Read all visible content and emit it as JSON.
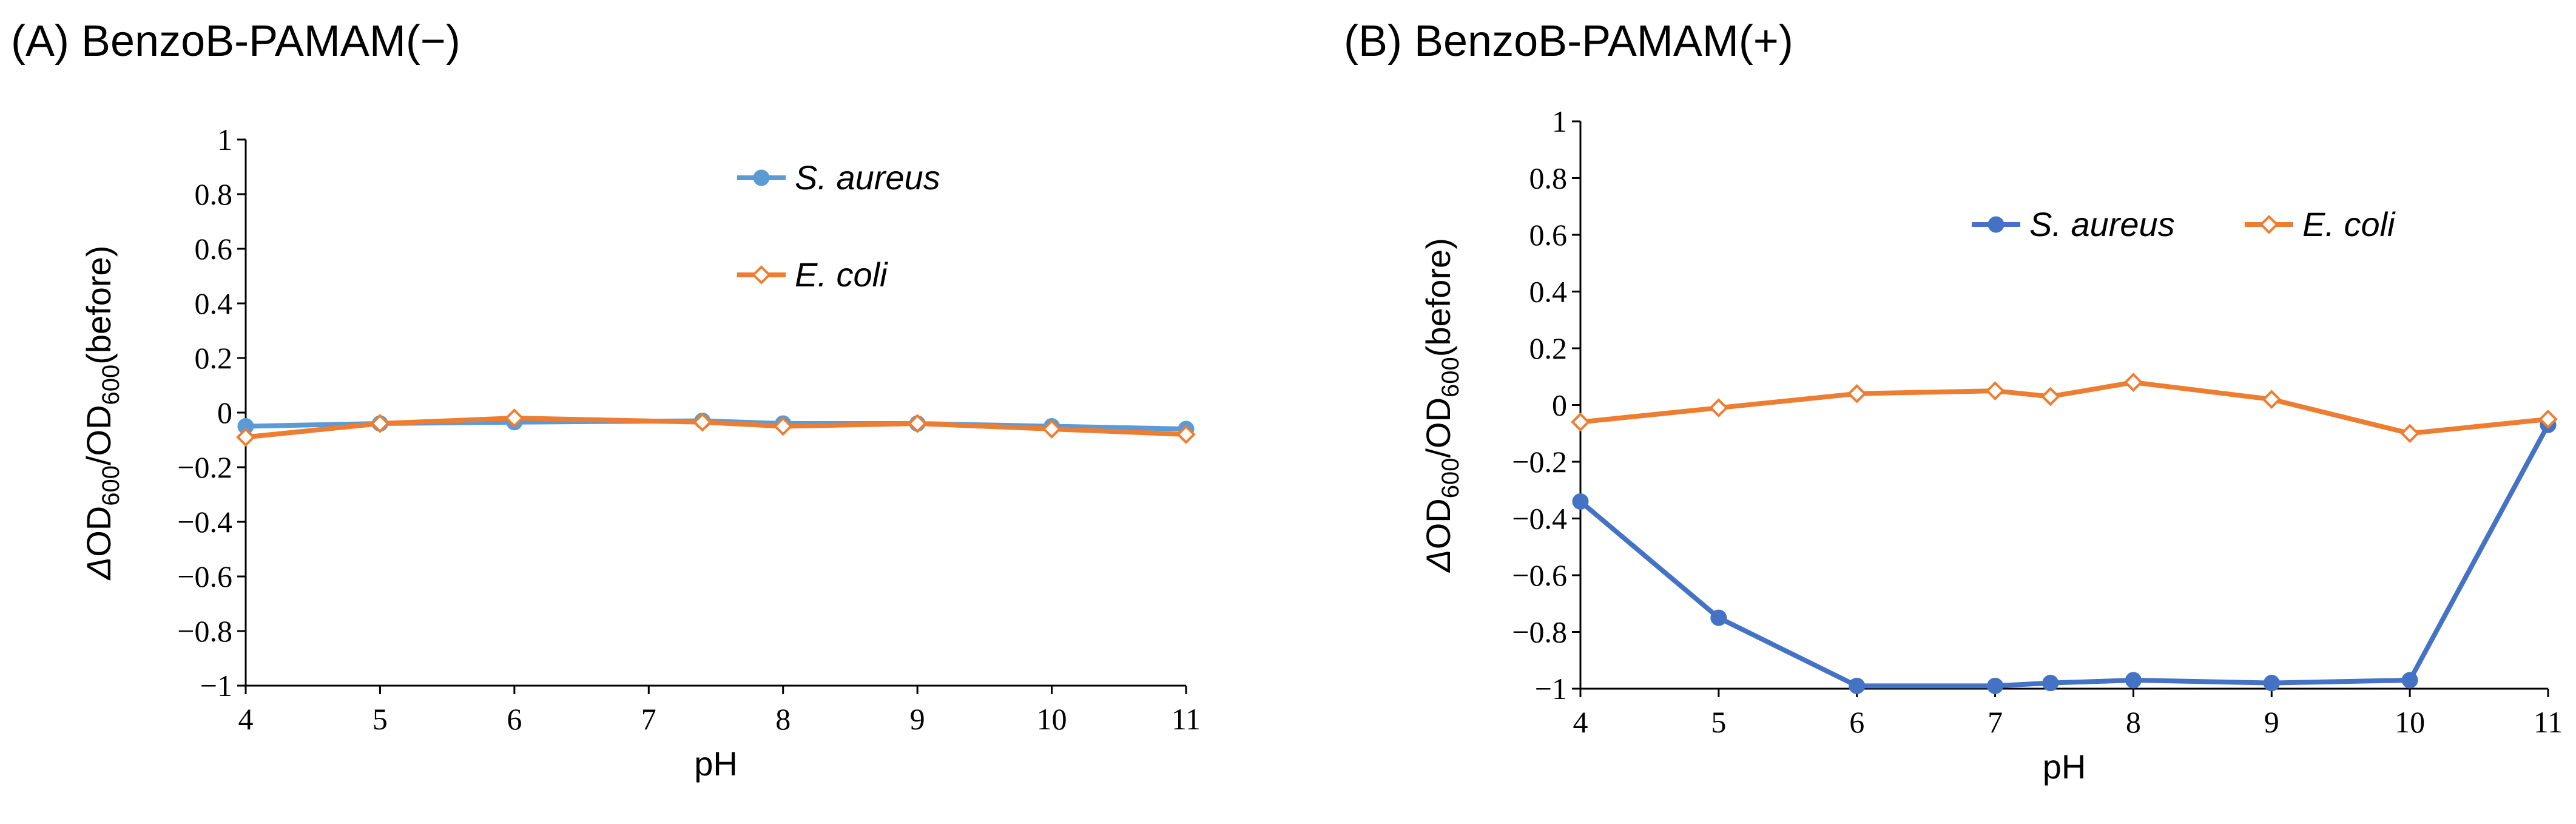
{
  "chart_data": [
    {
      "type": "line",
      "title": "(A) BenzoB-PAMAM(−)",
      "xlabel": "pH",
      "ylabel": "ΔOD600/OD600(before)",
      "ylabel_parts": {
        "delta": "Δ",
        "od": "OD",
        "sub": "600",
        "slash": "/",
        "tail": "(before)"
      },
      "xlim": [
        4,
        11
      ],
      "ylim": [
        -1,
        1
      ],
      "xticks": [
        4,
        5,
        6,
        7,
        8,
        9,
        10,
        11
      ],
      "xtick_labels": [
        "4",
        "5",
        "6",
        "7",
        "8",
        "9",
        "10",
        "11"
      ],
      "yticks": [
        1,
        0.8,
        0.6,
        0.4,
        0.2,
        0,
        -0.2,
        -0.4,
        -0.6,
        -0.8,
        -1
      ],
      "ytick_labels": [
        "1",
        "0.8",
        "0.6",
        "0.4",
        "0.2",
        "0",
        "−0.2",
        "−0.4",
        "−0.6",
        "−0.8",
        "−1"
      ],
      "legend_position": "upper-right-stacked",
      "series": [
        {
          "name": "S. aureus",
          "color": "#5B9BD5",
          "marker": "circle",
          "filled": true,
          "x": [
            4,
            5,
            6,
            7.4,
            8,
            9,
            10,
            11
          ],
          "y": [
            -0.05,
            -0.04,
            -0.035,
            -0.03,
            -0.04,
            -0.04,
            -0.05,
            -0.06
          ]
        },
        {
          "name": "E. coli",
          "color": "#ED7D31",
          "marker": "diamond",
          "filled": false,
          "x": [
            4,
            5,
            6,
            7.4,
            8,
            9,
            10,
            11
          ],
          "y": [
            -0.09,
            -0.04,
            -0.02,
            -0.035,
            -0.05,
            -0.04,
            -0.06,
            -0.08
          ]
        }
      ]
    },
    {
      "type": "line",
      "title": "(B) BenzoB-PAMAM(+)",
      "xlabel": "pH",
      "ylabel": "ΔOD600/OD600(before)",
      "ylabel_parts": {
        "delta": "Δ",
        "od": "OD",
        "sub": "600",
        "slash": "/",
        "tail": "(before)"
      },
      "xlim": [
        4,
        11
      ],
      "ylim": [
        -1,
        1
      ],
      "xticks": [
        4,
        5,
        6,
        7,
        8,
        9,
        10,
        11
      ],
      "xtick_labels": [
        "4",
        "5",
        "6",
        "7",
        "8",
        "9",
        "10",
        "11"
      ],
      "yticks": [
        1,
        0.8,
        0.6,
        0.4,
        0.2,
        0,
        -0.2,
        -0.4,
        -0.6,
        -0.8,
        -1
      ],
      "ytick_labels": [
        "1",
        "0.8",
        "0.6",
        "0.4",
        "0.2",
        "0",
        "−0.2",
        "−0.4",
        "−0.6",
        "−0.8",
        "−1"
      ],
      "legend_position": "upper-center-row",
      "series": [
        {
          "name": "S. aureus",
          "color": "#4472C4",
          "marker": "circle",
          "filled": true,
          "x": [
            4,
            5,
            6,
            7,
            7.4,
            8,
            9,
            10,
            11
          ],
          "y": [
            -0.34,
            -0.75,
            -0.99,
            -0.99,
            -0.98,
            -0.97,
            -0.98,
            -0.97,
            -0.07
          ]
        },
        {
          "name": "E. coli",
          "color": "#ED7D31",
          "marker": "diamond",
          "filled": false,
          "x": [
            4,
            5,
            6,
            7,
            7.4,
            8,
            9,
            10,
            11
          ],
          "y": [
            -0.06,
            -0.01,
            0.04,
            0.05,
            0.03,
            0.08,
            0.02,
            -0.1,
            -0.05
          ]
        }
      ]
    }
  ]
}
